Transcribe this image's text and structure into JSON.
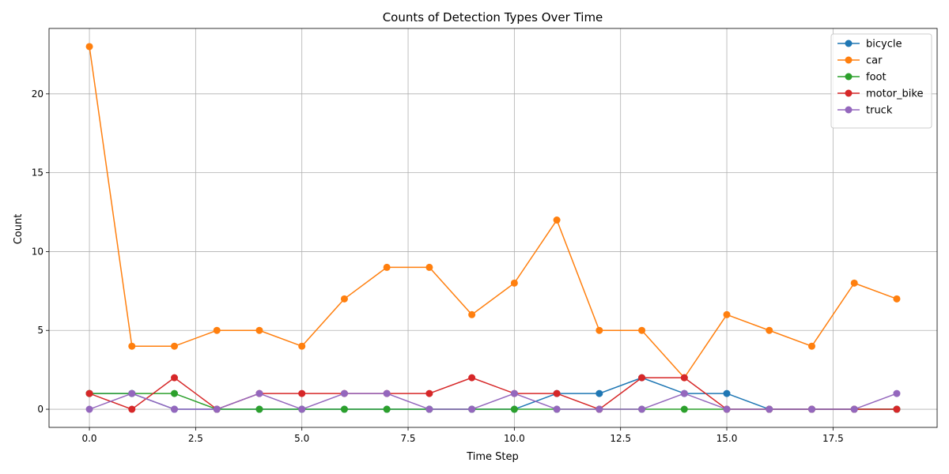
{
  "chart_data": {
    "type": "line",
    "title": "Counts of Detection Types Over Time",
    "xlabel": "Time Step",
    "ylabel": "Count",
    "x": [
      0,
      1,
      2,
      3,
      4,
      5,
      6,
      7,
      8,
      9,
      10,
      11,
      12,
      13,
      14,
      15,
      16,
      17,
      18,
      19
    ],
    "xlim": [
      -0.95,
      19.95
    ],
    "ylim": [
      -1.15,
      24.15
    ],
    "xticks": [
      0.0,
      2.5,
      5.0,
      7.5,
      10.0,
      12.5,
      15.0,
      17.5
    ],
    "xtick_labels": [
      "0.0",
      "2.5",
      "5.0",
      "7.5",
      "10.0",
      "12.5",
      "15.0",
      "17.5"
    ],
    "yticks": [
      0,
      5,
      10,
      15,
      20
    ],
    "ytick_labels": [
      "0",
      "5",
      "10",
      "15",
      "20"
    ],
    "grid": true,
    "legend_position": "top-right",
    "series": [
      {
        "name": "bicycle",
        "color": "#1f77b4",
        "values": [
          1,
          1,
          0,
          0,
          0,
          0,
          0,
          0,
          0,
          0,
          0,
          1,
          1,
          2,
          1,
          1,
          0,
          0,
          0,
          0
        ]
      },
      {
        "name": "car",
        "color": "#ff7f0e",
        "values": [
          23,
          4,
          4,
          5,
          5,
          4,
          7,
          9,
          9,
          6,
          8,
          12,
          5,
          5,
          2,
          6,
          5,
          4,
          8,
          7
        ]
      },
      {
        "name": "foot",
        "color": "#2ca02c",
        "values": [
          1,
          1,
          1,
          0,
          0,
          0,
          0,
          0,
          0,
          0,
          0,
          0,
          0,
          0,
          0,
          0,
          0,
          0,
          0,
          0
        ]
      },
      {
        "name": "motor_bike",
        "color": "#d62728",
        "values": [
          1,
          0,
          2,
          0,
          1,
          1,
          1,
          1,
          1,
          2,
          1,
          1,
          0,
          2,
          2,
          0,
          0,
          0,
          0,
          0
        ]
      },
      {
        "name": "truck",
        "color": "#9467bd",
        "values": [
          0,
          1,
          0,
          0,
          1,
          0,
          1,
          1,
          0,
          0,
          1,
          0,
          0,
          0,
          1,
          0,
          0,
          0,
          0,
          1
        ]
      }
    ]
  }
}
